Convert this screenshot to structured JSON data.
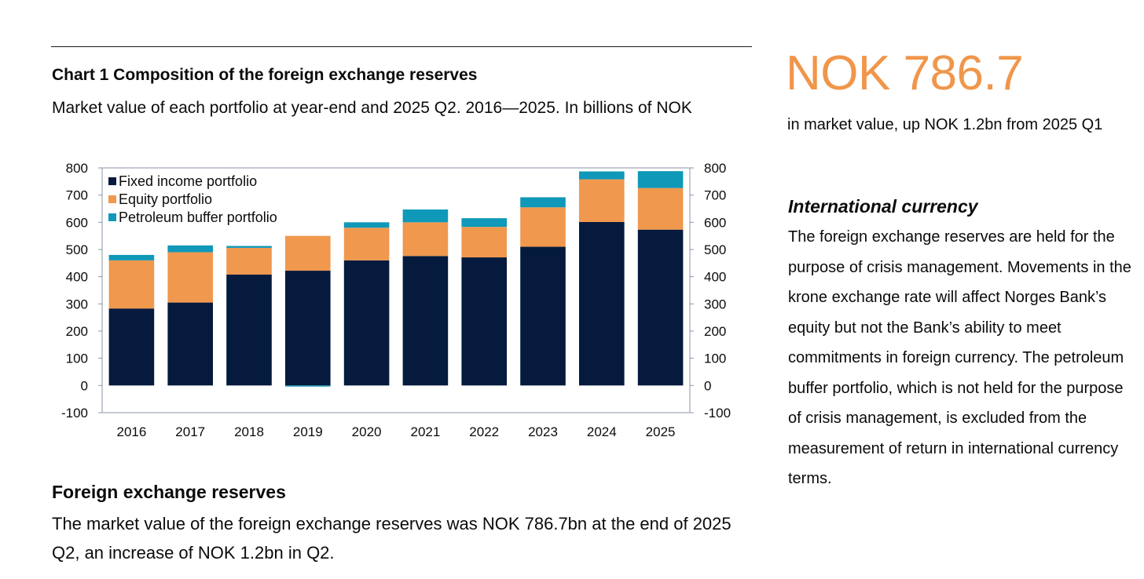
{
  "chart_title": "Chart 1 Composition of the foreign exchange reserves",
  "chart_subtitle": "Market value of each portfolio at year-end and 2025 Q2. 2016—2025. In billions of NOK",
  "section": {
    "heading": "Foreign exchange reserves",
    "body": "The market value of the foreign exchange reserves was NOK 786.7bn at the end of 2025 Q2, an increase of NOK 1.2bn in Q2."
  },
  "highlight": {
    "value": "NOK 786.7",
    "caption": "in market value, up NOK 1.2bn from 2025 Q1"
  },
  "sidebar": {
    "heading": "International currency",
    "body": "The foreign exchange reserves are held for the purpose of crisis management. Movements in the krone exchange rate will affect Norges Bank’s equity but not the Bank’s ability to meet commitments in foreign currency. The petroleum buffer portfolio, which is not held for the purpose of crisis management, is excluded from the measurement of return in international currency terms."
  },
  "colors": {
    "fixed_income": "#051a3c",
    "equity": "#f0984e",
    "petroleum": "#1098b8",
    "accent": "#f0964a"
  },
  "chart_data": {
    "type": "bar",
    "stacked": true,
    "categories": [
      "2016",
      "2017",
      "2018",
      "2019",
      "2020",
      "2021",
      "2022",
      "2023",
      "2024",
      "2025"
    ],
    "series": [
      {
        "name": "Fixed income portfolio",
        "values": [
          283,
          305,
          408,
          422,
          460,
          476,
          471,
          510,
          601,
          573
        ]
      },
      {
        "name": "Equity portfolio",
        "values": [
          177,
          185,
          98,
          128,
          120,
          124,
          112,
          145,
          157,
          153
        ]
      },
      {
        "name": "Petroleum buffer portfolio",
        "values": [
          20,
          25,
          7,
          -4,
          20,
          47,
          32,
          37,
          29,
          62
        ]
      }
    ],
    "ylim": [
      -100,
      800
    ],
    "yticks": [
      800,
      700,
      600,
      500,
      400,
      300,
      200,
      100,
      0,
      -100
    ],
    "legend_position": "top-left",
    "grid": false,
    "xlabel": "",
    "ylabel": ""
  }
}
